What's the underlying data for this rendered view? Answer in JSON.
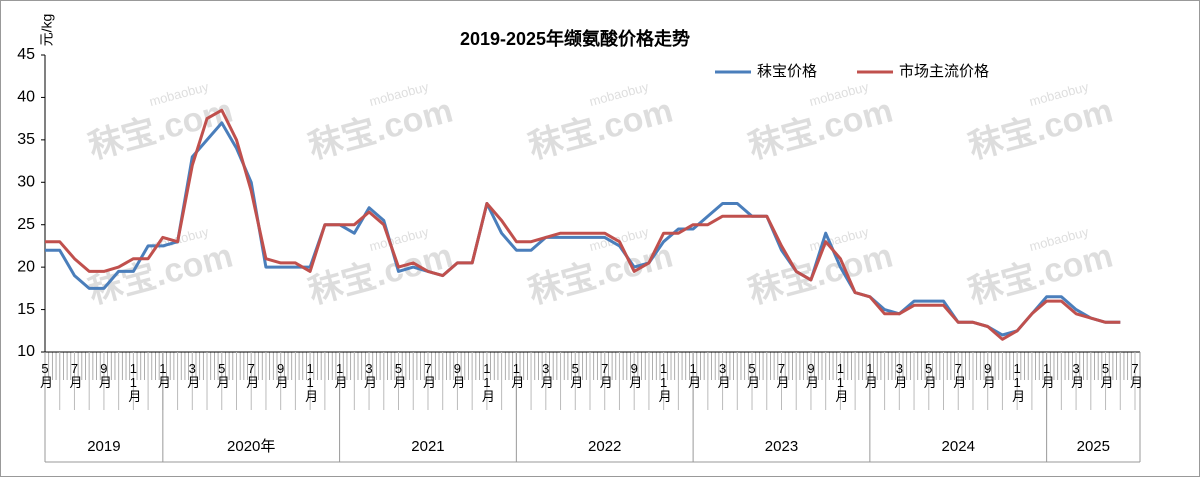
{
  "chart_data": {
    "type": "line",
    "title": "2019-2025年缬氨酸价格走势",
    "y_label": "元/kg",
    "watermark": "秣宝.com",
    "watermark_sub": "mobaobuy",
    "categories": [
      "5月",
      null,
      "7月",
      null,
      "9月",
      null,
      "11月",
      null,
      "1月",
      null,
      "3月",
      null,
      "5月",
      null,
      "7月",
      null,
      "9月",
      null,
      "11月",
      null,
      "1月",
      null,
      "3月",
      null,
      "5月",
      null,
      "7月",
      null,
      "9月",
      null,
      "11月",
      null,
      "1月",
      null,
      "3月",
      null,
      "5月",
      null,
      "7月",
      null,
      "9月",
      null,
      "11月",
      null,
      "1月",
      null,
      "3月",
      null,
      "5月",
      null,
      "7月",
      null,
      "9月",
      null,
      "11月",
      null,
      "1月",
      null,
      "3月",
      null,
      "5月",
      null,
      "7月",
      null,
      "9月",
      null,
      "11月",
      null,
      "1月",
      null,
      "3月",
      null,
      "5月",
      null,
      "7月"
    ],
    "x_groups": [
      {
        "label": "2019",
        "count": 8
      },
      {
        "label": "2020年",
        "count": 12
      },
      {
        "label": "2021",
        "count": 12
      },
      {
        "label": "2022",
        "count": 12
      },
      {
        "label": "2023",
        "count": 12
      },
      {
        "label": "2024",
        "count": 12
      },
      {
        "label": "2025",
        "count": 7
      }
    ],
    "series": [
      {
        "name": "秣宝价格",
        "color": "#4a7ebb",
        "values": [
          22,
          22,
          19,
          17.5,
          17.5,
          19.5,
          19.5,
          22.5,
          22.5,
          23,
          33,
          35,
          37,
          34,
          30,
          20,
          20,
          20,
          20,
          25,
          25,
          24,
          27,
          25.5,
          19.5,
          20,
          19.5,
          19,
          20.5,
          20.5,
          27.5,
          24,
          22,
          22,
          23.5,
          23.5,
          23.5,
          23.5,
          23.5,
          22.5,
          20,
          20.5,
          23,
          24.5,
          24.5,
          26,
          27.5,
          27.5,
          26,
          26,
          22,
          19.5,
          18.5,
          24,
          20,
          17,
          16.5,
          15,
          14.5,
          16,
          16,
          16,
          13.5,
          13.5,
          13,
          12,
          12.5,
          14.5,
          16.5,
          16.5,
          15,
          14,
          13.5,
          13.5,
          null
        ]
      },
      {
        "name": "市场主流价格",
        "color": "#c0504d",
        "values": [
          23,
          23,
          21,
          19.5,
          19.5,
          20,
          21,
          21,
          23.5,
          23,
          32,
          37.5,
          38.5,
          35,
          29,
          21,
          20.5,
          20.5,
          19.5,
          25,
          25,
          25,
          26.5,
          25,
          20,
          20.5,
          19.5,
          19,
          20.5,
          20.5,
          27.5,
          25.5,
          23,
          23,
          23.5,
          24,
          24,
          24,
          24,
          23,
          19.5,
          20.5,
          24,
          24,
          25,
          25,
          26,
          26,
          26,
          26,
          22.5,
          19.5,
          18.5,
          23,
          21,
          17,
          16.5,
          14.5,
          14.5,
          15.5,
          15.5,
          15.5,
          13.5,
          13.5,
          13,
          11.5,
          12.5,
          14.5,
          16,
          16,
          14.5,
          14,
          13.5,
          13.5,
          null
        ]
      }
    ],
    "ylim": [
      10,
      45
    ],
    "yticks": [
      10,
      15,
      20,
      25,
      30,
      35,
      40,
      45
    ],
    "legend": "top-right",
    "grid": false
  }
}
